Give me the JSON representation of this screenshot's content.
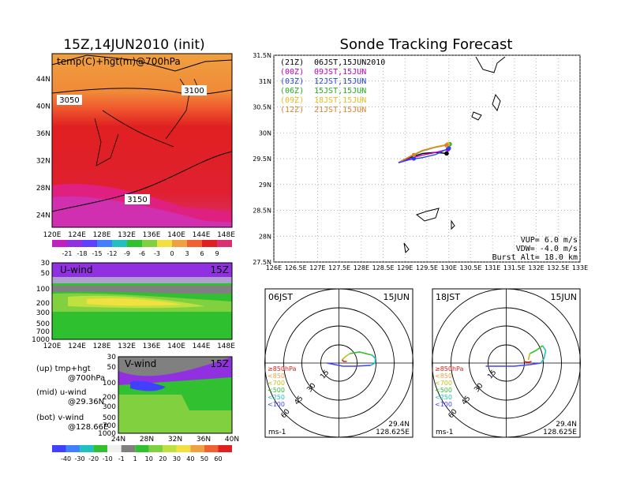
{
  "colors": {
    "orange": "#f0a040",
    "red_orange": "#f06030",
    "red": "#e02020",
    "pink": "#e05090",
    "magenta": "#d020c0",
    "purple": "#9030e0",
    "blue": "#4040ff",
    "green": "#30c030",
    "yellow_green": "#b0e040",
    "yellow": "#f0e040",
    "gray": "#808080",
    "cyan": "#20c0c0",
    "t21": "#000000",
    "t00": "#c000c0",
    "t03": "#2040ff",
    "t06": "#20b020",
    "t09": "#e0c020",
    "t12": "#e08030"
  },
  "left_panel": {
    "title": "15Z,14JUN2010 (init)",
    "subtitle": "temp(C)+hgt(m)@700hPa",
    "lat_ticks": [
      "44N",
      "40N",
      "36N",
      "32N",
      "28N",
      "24N"
    ],
    "lon_ticks": [
      "120E",
      "124E",
      "128E",
      "132E",
      "136E",
      "140E",
      "144E",
      "148E"
    ],
    "contours": [
      "3050",
      "3100",
      "3150"
    ],
    "colorbar": [
      "-21",
      "-18",
      "-15",
      "-12",
      "-9",
      "-6",
      "-3",
      "0",
      "3",
      "6",
      "9"
    ]
  },
  "u_panel": {
    "label": "U-wind",
    "time": "15Z",
    "p_ticks": [
      "30",
      "50",
      "100",
      "200",
      "300",
      "500",
      "700",
      "1000"
    ],
    "lon_ticks": [
      "120E",
      "124E",
      "128E",
      "132E",
      "136E",
      "140E",
      "144E",
      "148E"
    ]
  },
  "v_panel": {
    "label": "V-wind",
    "time": "15Z",
    "p_ticks": [
      "30",
      "50",
      "100",
      "200",
      "300",
      "500",
      "700",
      "1000"
    ],
    "lat_ticks": [
      "24N",
      "28N",
      "32N",
      "36N",
      "40N"
    ]
  },
  "notes": {
    "up1": "(up) tmp+hgt",
    "up2": "@700hPa",
    "mid1": "(mid) u-wind",
    "mid2": "@29.36N",
    "bot1": "(bot) v-wind",
    "bot2": "@128.66E"
  },
  "wind_colorbar": [
    "-40",
    "-30",
    "-20",
    "-10",
    "-1",
    "1",
    "10",
    "20",
    "30",
    "40",
    "50",
    "60"
  ],
  "main_panel": {
    "title": "Sonde Tracking Forecast",
    "legend": [
      {
        "code": "(21Z)",
        "text": "06JST,15JUN2010"
      },
      {
        "code": "(00Z)",
        "text": "09JST,15JUN"
      },
      {
        "code": "(03Z)",
        "text": "12JST,15JUN"
      },
      {
        "code": "(06Z)",
        "text": "15JST,15JUN"
      },
      {
        "code": "(09Z)",
        "text": "18JST,15JUN"
      },
      {
        "code": "(12Z)",
        "text": "21JST,15JUN"
      }
    ],
    "info": [
      "VUP= 6.0 m/s",
      "VDW= -4.0 m/s",
      "Burst Alt= 18.0 km"
    ]
  },
  "hodo_left": {
    "time": "06JST",
    "date": "15JUN",
    "unit": "ms-1",
    "lat": "29.4N",
    "lon": "128.625E",
    "rings": [
      "15",
      "30",
      "45",
      "60"
    ],
    "levels": [
      "≥850hPa",
      "<850",
      "<700",
      "<500",
      "<250",
      "<100"
    ]
  },
  "hodo_right": {
    "time": "18JST",
    "date": "15JUN",
    "unit": "ms-1",
    "lat": "29.4N",
    "lon": "128.625E",
    "rings": [
      "15",
      "30",
      "45",
      "60"
    ],
    "levels": [
      "≥850hPa",
      "<850",
      "<700",
      "<500",
      "<250",
      "<100"
    ]
  },
  "chart_data": {
    "type": "line",
    "title": "Sonde Tracking Forecast",
    "xlabel": "",
    "ylabel": "",
    "x_ticks": [
      "126E",
      "126.5E",
      "127E",
      "127.5E",
      "128E",
      "128.5E",
      "129E",
      "129.5E",
      "130E",
      "130.5E",
      "131E",
      "131.5E",
      "132E",
      "132.5E",
      "133E"
    ],
    "y_ticks": [
      "27.5N",
      "28N",
      "28.5N",
      "29N",
      "29.5N",
      "30N",
      "30.5N",
      "31N",
      "31.5N"
    ],
    "xlim": [
      126,
      133
    ],
    "ylim": [
      27.5,
      31.5
    ],
    "grid": true,
    "legend_position": "top-left",
    "series": [
      {
        "name": "(21Z) 06JST,15JUN2010",
        "x": [
          128.85,
          129.1,
          129.4,
          129.7,
          129.95
        ],
        "y": [
          29.42,
          29.52,
          29.6,
          29.62,
          29.6
        ]
      },
      {
        "name": "(00Z) 09JST,15JUN",
        "x": [
          128.85,
          129.1,
          129.4,
          129.7,
          129.98
        ],
        "y": [
          29.42,
          29.5,
          29.57,
          29.62,
          29.68
        ]
      },
      {
        "name": "(03Z) 12JST,15JUN",
        "x": [
          128.85,
          129.1,
          129.4,
          129.7,
          130.0
        ],
        "y": [
          29.42,
          29.48,
          29.52,
          29.58,
          29.7
        ]
      },
      {
        "name": "(06Z) 15JST,15JUN",
        "x": [
          128.9,
          129.15,
          129.4,
          129.7,
          130.02
        ],
        "y": [
          29.45,
          29.55,
          29.65,
          29.72,
          29.78
        ]
      },
      {
        "name": "(09Z) 18JST,15JUN",
        "x": [
          128.9,
          129.15,
          129.4,
          129.7,
          129.98
        ],
        "y": [
          29.45,
          29.56,
          29.66,
          29.73,
          29.78
        ]
      },
      {
        "name": "(12Z) 21JST,15JUN",
        "x": [
          128.9,
          129.15,
          129.4,
          129.7,
          129.95
        ],
        "y": [
          29.45,
          29.56,
          29.66,
          29.72,
          29.76
        ]
      }
    ]
  }
}
